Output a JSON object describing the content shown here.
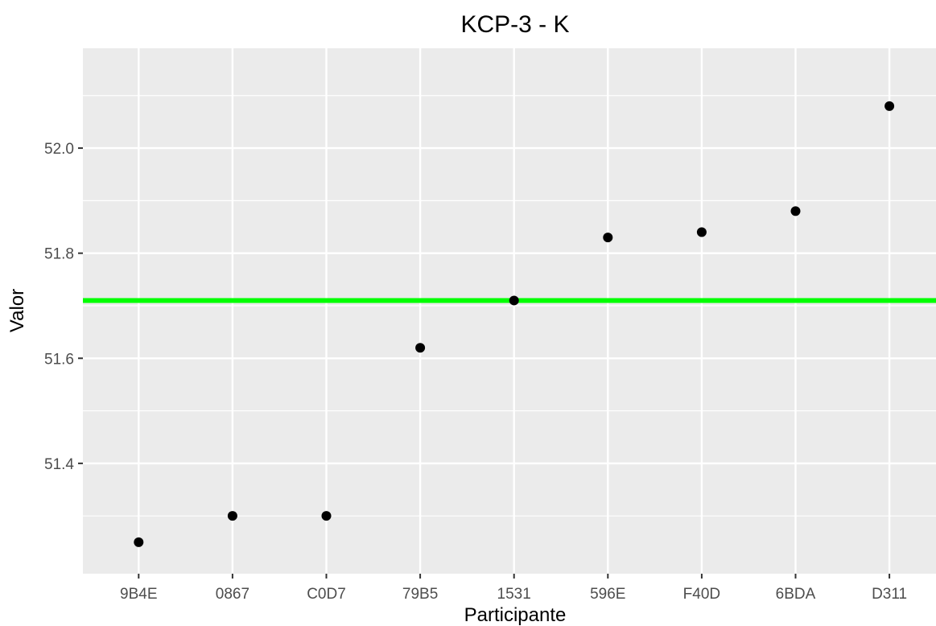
{
  "chart_data": {
    "type": "scatter",
    "title": "KCP-3 - K",
    "xlabel": "Participante",
    "ylabel": "Valor",
    "categories": [
      "9B4E",
      "0867",
      "C0D7",
      "79B5",
      "1531",
      "596E",
      "F40D",
      "6BDA",
      "D311"
    ],
    "values": [
      51.25,
      51.3,
      51.3,
      51.62,
      51.71,
      51.83,
      51.84,
      51.88,
      52.08
    ],
    "yticks": [
      51.4,
      51.6,
      51.8,
      52.0
    ],
    "ytick_labels": [
      "51.4",
      "51.6",
      "51.8",
      "52.0"
    ],
    "ylim": [
      51.19,
      52.19
    ],
    "reference_line": {
      "value": 51.71,
      "color": "#00ff00"
    },
    "grid": true,
    "legend": "none",
    "colors": {
      "panel_background": "#ebebeb",
      "grid": "#ffffff",
      "point": "#000000"
    }
  }
}
